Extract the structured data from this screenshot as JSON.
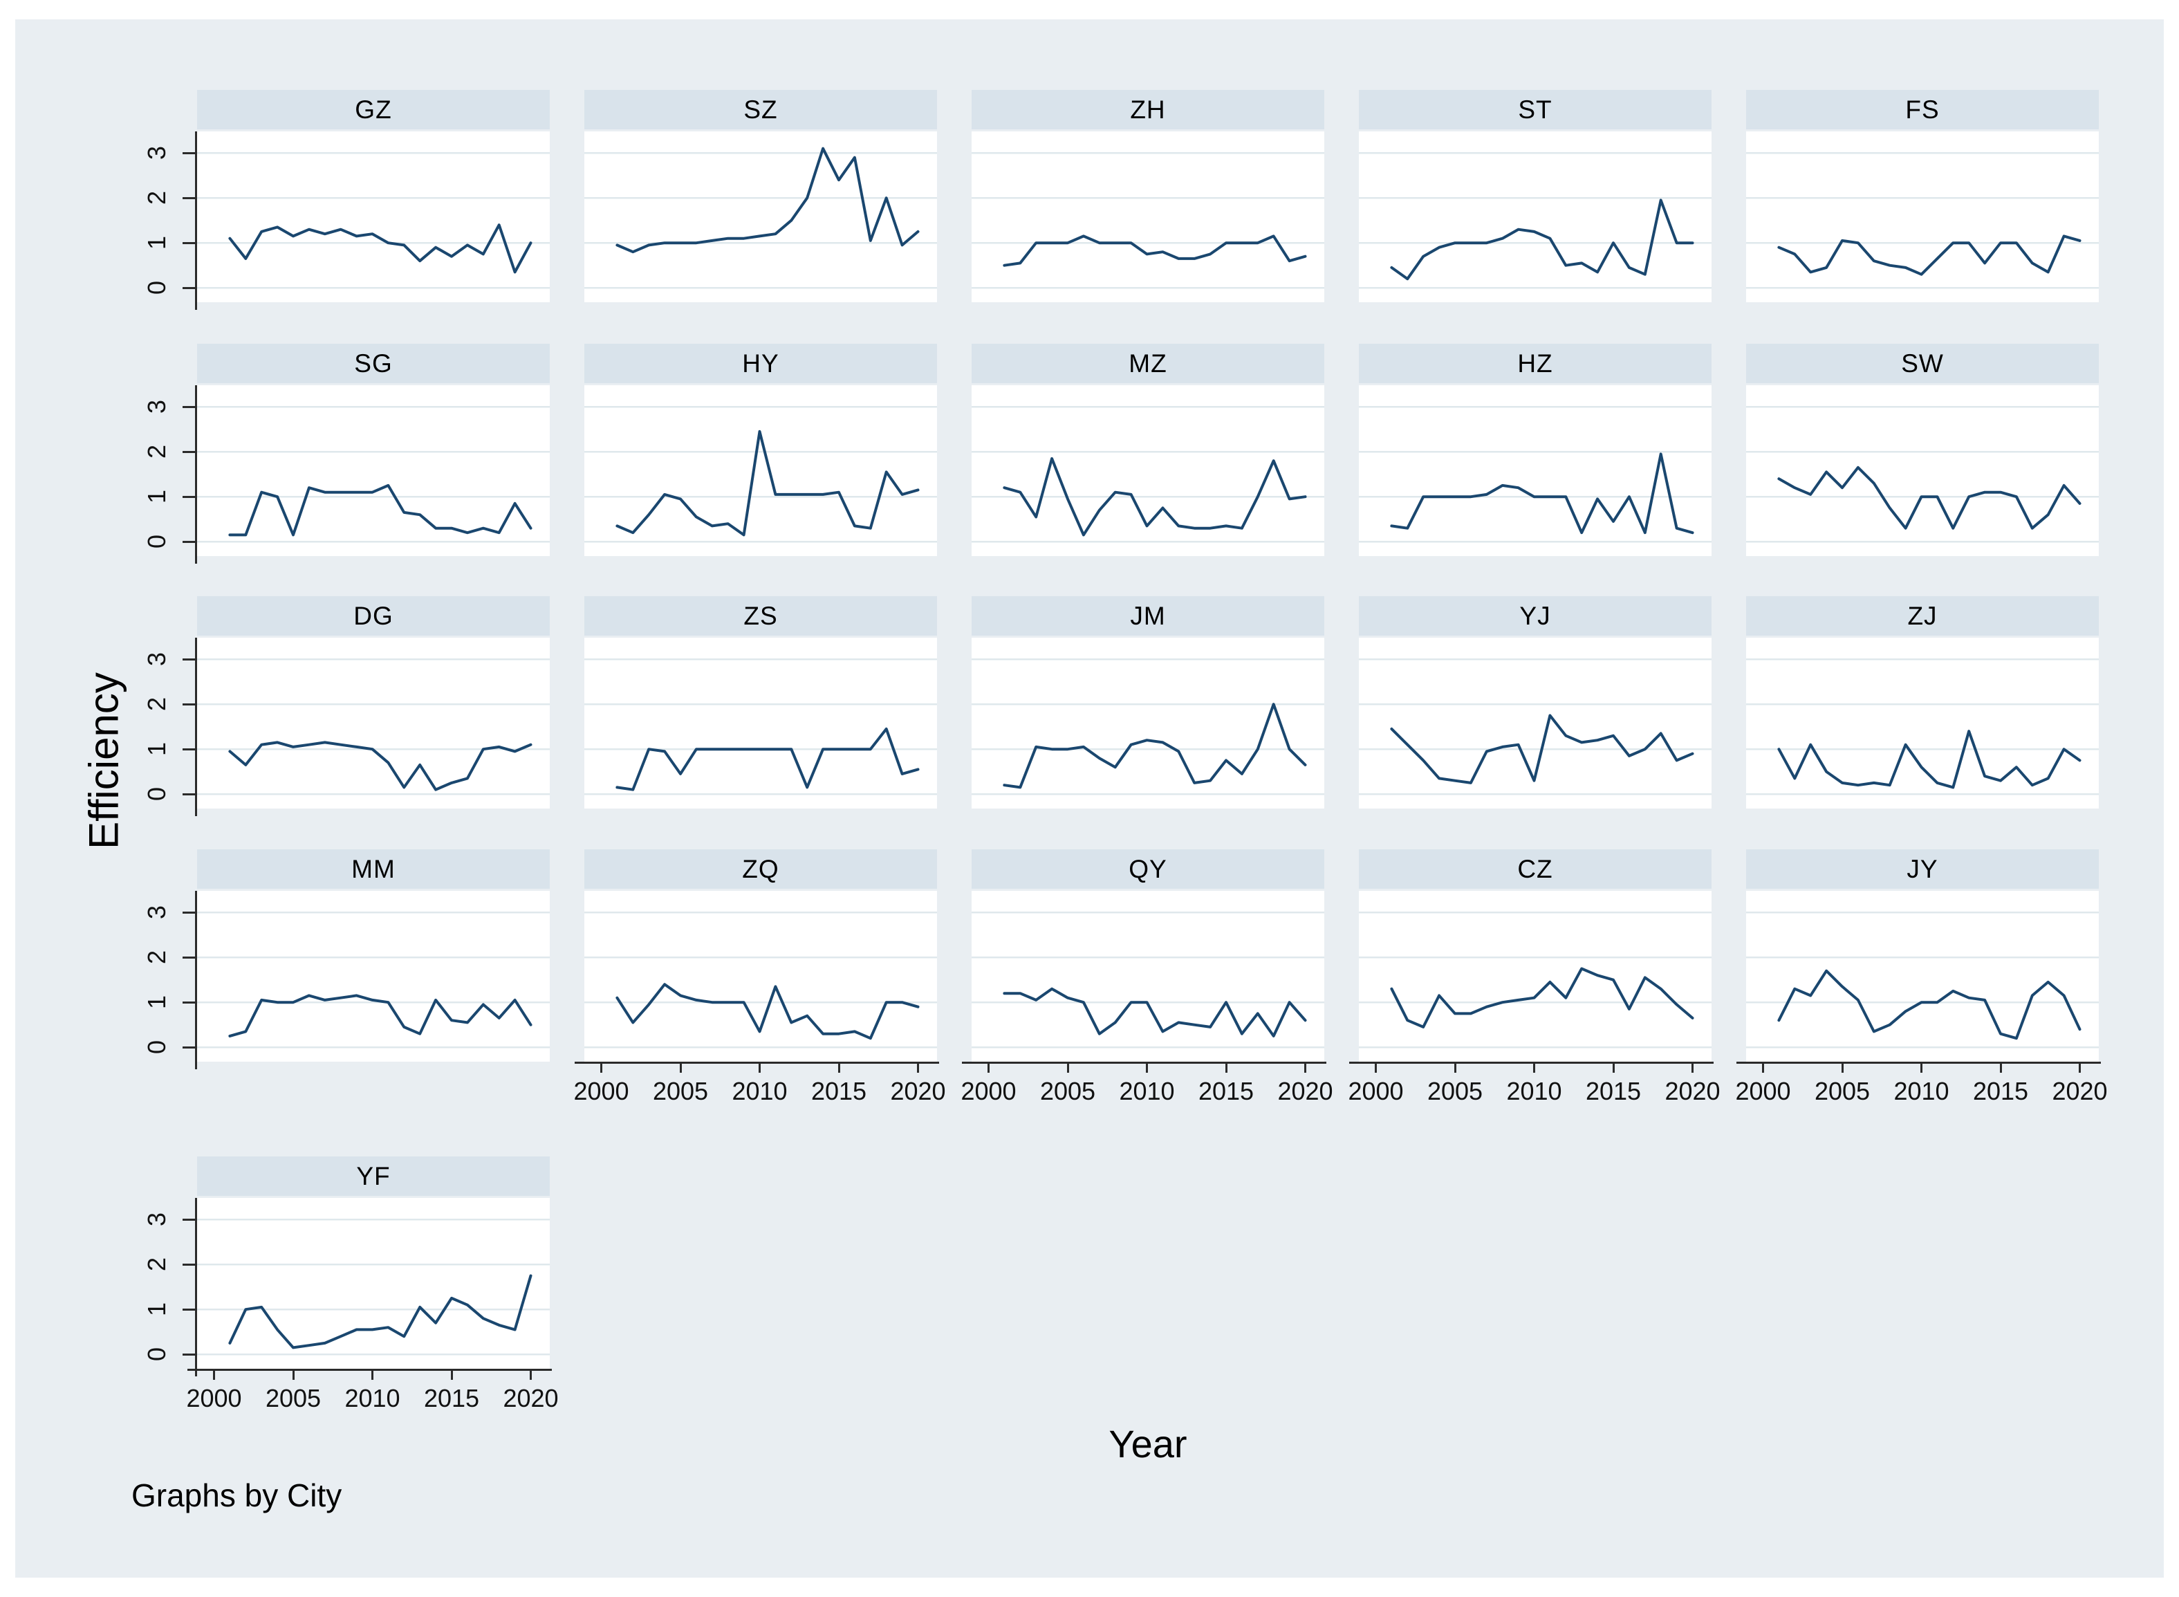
{
  "figure": {
    "ylabel": "Efficiency",
    "xlabel": "Year",
    "caption": "Graphs by City",
    "y_ticks": [
      0,
      1,
      2,
      3
    ],
    "x_ticks": [
      2000,
      2005,
      2010,
      2015,
      2020
    ],
    "colors": {
      "line": "#1a476f",
      "header_bg": "#d9e3eb",
      "figure_bg": "#e9eef2",
      "plot_bg": "#ffffff",
      "grid": "#dfe8ec",
      "axis": "#2b2b2b",
      "text": "#000000"
    }
  },
  "chart_data": {
    "type": "line",
    "title": "",
    "xlabel": "Year",
    "ylabel": "Efficiency",
    "facet_by": "City",
    "legend": "none",
    "grid": "horizontal",
    "xlim": [
      2000,
      2020
    ],
    "ylim": [
      -0.35,
      3.45
    ],
    "x": [
      2001,
      2002,
      2003,
      2004,
      2005,
      2006,
      2007,
      2008,
      2009,
      2010,
      2011,
      2012,
      2013,
      2014,
      2015,
      2016,
      2017,
      2018,
      2019,
      2020
    ],
    "series": [
      {
        "name": "GZ",
        "values": [
          1.1,
          0.65,
          1.25,
          1.35,
          1.15,
          1.3,
          1.2,
          1.3,
          1.15,
          1.2,
          1.0,
          0.95,
          0.6,
          0.9,
          0.7,
          0.95,
          0.75,
          1.4,
          0.35,
          1.0
        ]
      },
      {
        "name": "SZ",
        "values": [
          0.95,
          0.8,
          0.95,
          1.0,
          1.0,
          1.0,
          1.05,
          1.1,
          1.1,
          1.15,
          1.2,
          1.5,
          2.0,
          3.1,
          2.4,
          2.9,
          1.05,
          2.0,
          0.95,
          1.25
        ]
      },
      {
        "name": "ZH",
        "values": [
          0.5,
          0.55,
          1.0,
          1.0,
          1.0,
          1.15,
          1.0,
          1.0,
          1.0,
          0.75,
          0.8,
          0.65,
          0.65,
          0.75,
          1.0,
          1.0,
          1.0,
          1.15,
          0.6,
          0.7
        ]
      },
      {
        "name": "ST",
        "values": [
          0.45,
          0.2,
          0.7,
          0.9,
          1.0,
          1.0,
          1.0,
          1.1,
          1.3,
          1.25,
          1.1,
          0.5,
          0.55,
          0.35,
          1.0,
          0.45,
          0.3,
          1.95,
          1.0,
          1.0
        ]
      },
      {
        "name": "FS",
        "values": [
          0.9,
          0.75,
          0.35,
          0.45,
          1.05,
          1.0,
          0.6,
          0.5,
          0.45,
          0.3,
          0.65,
          1.0,
          1.0,
          0.55,
          1.0,
          1.0,
          0.55,
          0.35,
          1.15,
          1.05
        ]
      },
      {
        "name": "SG",
        "values": [
          0.15,
          0.15,
          1.1,
          1.0,
          0.15,
          1.2,
          1.1,
          1.1,
          1.1,
          1.1,
          1.25,
          0.65,
          0.6,
          0.3,
          0.3,
          0.2,
          0.3,
          0.2,
          0.85,
          0.3
        ]
      },
      {
        "name": "HY",
        "values": [
          0.35,
          0.2,
          0.6,
          1.05,
          0.95,
          0.55,
          0.35,
          0.4,
          0.15,
          2.45,
          1.05,
          1.05,
          1.05,
          1.05,
          1.1,
          0.35,
          0.3,
          1.55,
          1.05,
          1.15
        ]
      },
      {
        "name": "MZ",
        "values": [
          1.2,
          1.1,
          0.55,
          1.85,
          0.95,
          0.15,
          0.7,
          1.1,
          1.05,
          0.35,
          0.75,
          0.35,
          0.3,
          0.3,
          0.35,
          0.3,
          1.0,
          1.8,
          0.95,
          1.0
        ]
      },
      {
        "name": "HZ",
        "values": [
          0.35,
          0.3,
          1.0,
          1.0,
          1.0,
          1.0,
          1.05,
          1.25,
          1.2,
          1.0,
          1.0,
          1.0,
          0.2,
          0.95,
          0.45,
          1.0,
          0.2,
          1.95,
          0.3,
          0.2
        ]
      },
      {
        "name": "SW",
        "values": [
          1.4,
          1.2,
          1.05,
          1.55,
          1.2,
          1.65,
          1.3,
          0.75,
          0.3,
          1.0,
          1.0,
          0.3,
          1.0,
          1.1,
          1.1,
          1.0,
          0.3,
          0.6,
          1.25,
          0.85
        ]
      },
      {
        "name": "DG",
        "values": [
          0.95,
          0.65,
          1.1,
          1.15,
          1.05,
          1.1,
          1.15,
          1.1,
          1.05,
          1.0,
          0.7,
          0.15,
          0.65,
          0.1,
          0.25,
          0.35,
          1.0,
          1.05,
          0.95,
          1.1
        ]
      },
      {
        "name": "ZS",
        "values": [
          0.15,
          0.1,
          1.0,
          0.95,
          0.45,
          1.0,
          1.0,
          1.0,
          1.0,
          1.0,
          1.0,
          1.0,
          0.15,
          1.0,
          1.0,
          1.0,
          1.0,
          1.45,
          0.45,
          0.55
        ]
      },
      {
        "name": "JM",
        "values": [
          0.2,
          0.15,
          1.05,
          1.0,
          1.0,
          1.05,
          0.8,
          0.6,
          1.1,
          1.2,
          1.15,
          0.95,
          0.25,
          0.3,
          0.75,
          0.45,
          1.0,
          2.0,
          1.0,
          0.65
        ]
      },
      {
        "name": "YJ",
        "values": [
          1.45,
          1.1,
          0.75,
          0.35,
          0.3,
          0.25,
          0.95,
          1.05,
          1.1,
          0.3,
          1.75,
          1.3,
          1.15,
          1.2,
          1.3,
          0.85,
          1.0,
          1.35,
          0.75,
          0.9
        ]
      },
      {
        "name": "ZJ",
        "values": [
          1.0,
          0.35,
          1.1,
          0.5,
          0.25,
          0.2,
          0.25,
          0.2,
          1.1,
          0.6,
          0.25,
          0.15,
          1.4,
          0.4,
          0.3,
          0.6,
          0.2,
          0.35,
          1.0,
          0.75
        ]
      },
      {
        "name": "MM",
        "values": [
          0.25,
          0.35,
          1.05,
          1.0,
          1.0,
          1.15,
          1.05,
          1.1,
          1.15,
          1.05,
          1.0,
          0.45,
          0.3,
          1.05,
          0.6,
          0.55,
          0.95,
          0.65,
          1.05,
          0.5
        ]
      },
      {
        "name": "ZQ",
        "values": [
          1.1,
          0.55,
          0.95,
          1.4,
          1.15,
          1.05,
          1.0,
          1.0,
          1.0,
          0.35,
          1.35,
          0.55,
          0.7,
          0.3,
          0.3,
          0.35,
          0.2,
          1.0,
          1.0,
          0.9
        ]
      },
      {
        "name": "QY",
        "values": [
          1.2,
          1.2,
          1.05,
          1.3,
          1.1,
          1.0,
          0.3,
          0.55,
          1.0,
          1.0,
          0.35,
          0.55,
          0.5,
          0.45,
          1.0,
          0.3,
          0.75,
          0.25,
          1.0,
          0.6
        ]
      },
      {
        "name": "CZ",
        "values": [
          1.3,
          0.6,
          0.45,
          1.15,
          0.75,
          0.75,
          0.9,
          1.0,
          1.05,
          1.1,
          1.45,
          1.1,
          1.75,
          1.6,
          1.5,
          0.85,
          1.55,
          1.3,
          0.95,
          0.65
        ]
      },
      {
        "name": "JY",
        "values": [
          0.6,
          1.3,
          1.15,
          1.7,
          1.35,
          1.05,
          0.35,
          0.5,
          0.8,
          1.0,
          1.0,
          1.25,
          1.1,
          1.05,
          0.3,
          0.2,
          1.15,
          1.45,
          1.15,
          0.4
        ]
      },
      {
        "name": "YF",
        "values": [
          0.25,
          1.0,
          1.05,
          0.55,
          0.15,
          0.2,
          0.25,
          0.4,
          0.55,
          0.55,
          0.6,
          0.4,
          1.05,
          0.7,
          1.25,
          1.1,
          0.8,
          0.65,
          0.55,
          1.75
        ]
      }
    ]
  }
}
